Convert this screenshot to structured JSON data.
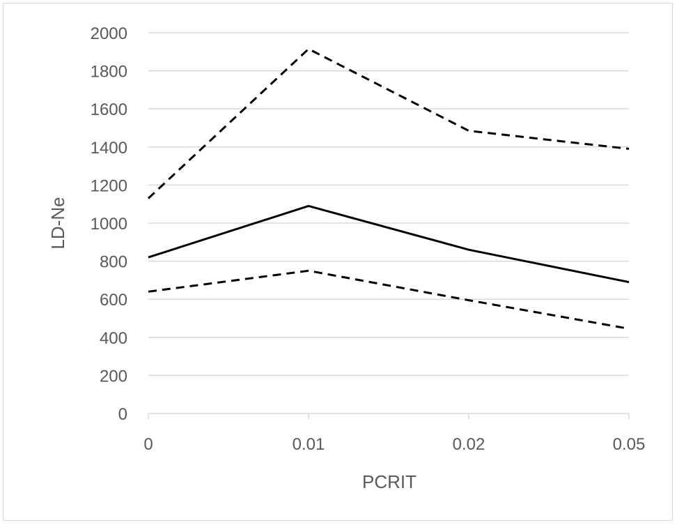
{
  "chart_data": {
    "type": "line",
    "title": "",
    "xlabel": "PCRIT",
    "ylabel": "LD-Ne",
    "categories": [
      "0",
      "0.01",
      "0.02",
      "0.05"
    ],
    "ylim": [
      0,
      2000
    ],
    "yticks": [
      0,
      200,
      400,
      600,
      800,
      1000,
      1200,
      1400,
      1600,
      1800,
      2000
    ],
    "grid": "horizontal",
    "legend": "none",
    "series": [
      {
        "values": [
          1130,
          1915,
          1485,
          1390
        ],
        "style": "dashed",
        "color": "#000000"
      },
      {
        "values": [
          820,
          1090,
          860,
          690
        ],
        "style": "solid",
        "color": "#000000"
      },
      {
        "values": [
          640,
          750,
          595,
          445
        ],
        "style": "dashed",
        "color": "#000000"
      }
    ]
  }
}
